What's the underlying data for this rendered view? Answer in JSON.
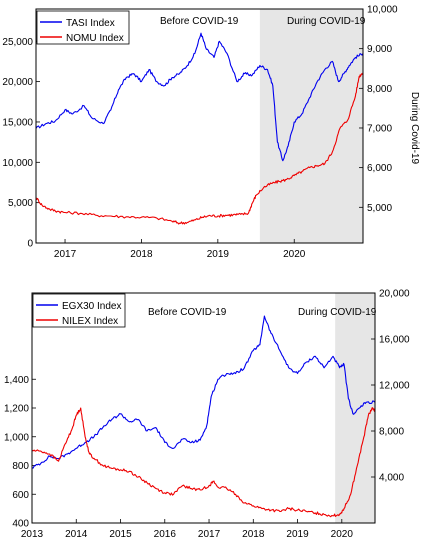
{
  "chart_data": [
    {
      "type": "line",
      "annotations": [
        "Before COVID-19",
        "During COVID-19"
      ],
      "side_label": "During Covid-19",
      "shaded_region": {
        "x_from": 2019.55,
        "x_to": 2020.9,
        "color": "#e6e6e6"
      },
      "x_ticks": [
        "2017",
        "2018",
        "2019",
        "2020"
      ],
      "x_tick_values": [
        2017,
        2018,
        2019,
        2020
      ],
      "xlim": [
        2016.62,
        2020.9
      ],
      "y_left": {
        "ticks": [
          "0",
          "5,000",
          "10,000",
          "15,000",
          "20,000",
          "25,000"
        ],
        "tick_values": [
          0,
          5000,
          10000,
          15000,
          20000,
          25000
        ],
        "ylim": [
          0,
          29000
        ]
      },
      "y_right": {
        "ticks": [
          "5,000",
          "6,000",
          "7,000",
          "8,000",
          "9,000",
          "10,000"
        ],
        "tick_values": [
          5000,
          6000,
          7000,
          8000,
          9000,
          10000
        ],
        "ylim": [
          4100,
          10000
        ]
      },
      "series": [
        {
          "name": "TASI Index",
          "color": "#0000ee",
          "axis": "left",
          "points": [
            [
              2016.62,
              14200
            ],
            [
              2016.75,
              14800
            ],
            [
              2016.87,
              15100
            ],
            [
              2017.0,
              16500
            ],
            [
              2017.1,
              16000
            ],
            [
              2017.25,
              17000
            ],
            [
              2017.35,
              15500
            ],
            [
              2017.5,
              14800
            ],
            [
              2017.6,
              16500
            ],
            [
              2017.7,
              19000
            ],
            [
              2017.8,
              20500
            ],
            [
              2017.9,
              21000
            ],
            [
              2018.0,
              20000
            ],
            [
              2018.1,
              21500
            ],
            [
              2018.2,
              20000
            ],
            [
              2018.3,
              19500
            ],
            [
              2018.4,
              20500
            ],
            [
              2018.5,
              21000
            ],
            [
              2018.6,
              22000
            ],
            [
              2018.7,
              23500
            ],
            [
              2018.78,
              26000
            ],
            [
              2018.85,
              24000
            ],
            [
              2018.95,
              23000
            ],
            [
              2019.02,
              25000
            ],
            [
              2019.12,
              23500
            ],
            [
              2019.25,
              20000
            ],
            [
              2019.35,
              21000
            ],
            [
              2019.45,
              20800
            ],
            [
              2019.55,
              22000
            ],
            [
              2019.65,
              21500
            ],
            [
              2019.72,
              19500
            ],
            [
              2019.78,
              12500
            ],
            [
              2019.85,
              10200
            ],
            [
              2019.92,
              12000
            ],
            [
              2020.0,
              15000
            ],
            [
              2020.1,
              16000
            ],
            [
              2020.2,
              18000
            ],
            [
              2020.3,
              20000
            ],
            [
              2020.4,
              21500
            ],
            [
              2020.5,
              22500
            ],
            [
              2020.58,
              20000
            ],
            [
              2020.65,
              21000
            ],
            [
              2020.72,
              22000
            ],
            [
              2020.8,
              23000
            ],
            [
              2020.9,
              23500
            ]
          ]
        },
        {
          "name": "NOMU Index",
          "color": "#ee0000",
          "axis": "right",
          "points": [
            [
              2016.62,
              5250
            ],
            [
              2016.7,
              5050
            ],
            [
              2016.8,
              4950
            ],
            [
              2016.9,
              4900
            ],
            [
              2017.0,
              4870
            ],
            [
              2017.2,
              4850
            ],
            [
              2017.4,
              4800
            ],
            [
              2017.6,
              4780
            ],
            [
              2017.8,
              4760
            ],
            [
              2018.0,
              4750
            ],
            [
              2018.2,
              4730
            ],
            [
              2018.4,
              4650
            ],
            [
              2018.5,
              4600
            ],
            [
              2018.6,
              4620
            ],
            [
              2018.7,
              4680
            ],
            [
              2018.8,
              4750
            ],
            [
              2018.9,
              4790
            ],
            [
              2019.0,
              4780
            ],
            [
              2019.1,
              4800
            ],
            [
              2019.2,
              4810
            ],
            [
              2019.3,
              4820
            ],
            [
              2019.4,
              4850
            ],
            [
              2019.45,
              5100
            ],
            [
              2019.5,
              5300
            ],
            [
              2019.6,
              5500
            ],
            [
              2019.7,
              5600
            ],
            [
              2019.8,
              5650
            ],
            [
              2019.9,
              5700
            ],
            [
              2020.0,
              5800
            ],
            [
              2020.1,
              5900
            ],
            [
              2020.2,
              6000
            ],
            [
              2020.3,
              6050
            ],
            [
              2020.4,
              6100
            ],
            [
              2020.5,
              6400
            ],
            [
              2020.6,
              7000
            ],
            [
              2020.7,
              7200
            ],
            [
              2020.8,
              7800
            ],
            [
              2020.85,
              8300
            ],
            [
              2020.9,
              8400
            ]
          ]
        }
      ]
    },
    {
      "type": "line",
      "annotations": [
        "Before COVID-19",
        "During COVID-19"
      ],
      "shaded_region": {
        "x_from": 2019.85,
        "x_to": 2020.75,
        "color": "#e6e6e6"
      },
      "x_ticks": [
        "2013",
        "2014",
        "2015",
        "2016",
        "2017",
        "2018",
        "2019",
        "2020"
      ],
      "x_tick_values": [
        2013,
        2014,
        2015,
        2016,
        2017,
        2018,
        2019,
        2020
      ],
      "xlim": [
        2013.0,
        2020.75
      ],
      "y_left": {
        "ticks": [
          "400",
          "600",
          "800",
          "1,000",
          "1,200",
          "1,400"
        ],
        "tick_values": [
          400,
          600,
          800,
          1000,
          1200,
          1400
        ],
        "ylim": [
          400,
          2000
        ]
      },
      "y_right": {
        "ticks": [
          "4,000",
          "8,000",
          "12,000",
          "16,000",
          "20,000"
        ],
        "tick_values": [
          4000,
          8000,
          12000,
          16000,
          20000
        ],
        "ylim": [
          0,
          20000
        ]
      },
      "series": [
        {
          "name": "EGX30 Index",
          "color": "#0000ee",
          "axis": "right",
          "points": [
            [
              2013.0,
              4800
            ],
            [
              2013.2,
              5200
            ],
            [
              2013.4,
              5800
            ],
            [
              2013.6,
              5600
            ],
            [
              2013.8,
              6000
            ],
            [
              2014.0,
              6500
            ],
            [
              2014.2,
              7000
            ],
            [
              2014.4,
              7500
            ],
            [
              2014.6,
              8300
            ],
            [
              2014.8,
              9000
            ],
            [
              2015.0,
              9500
            ],
            [
              2015.2,
              8800
            ],
            [
              2015.4,
              9000
            ],
            [
              2015.6,
              8000
            ],
            [
              2015.8,
              8300
            ],
            [
              2016.0,
              7000
            ],
            [
              2016.2,
              6500
            ],
            [
              2016.4,
              7300
            ],
            [
              2016.6,
              7000
            ],
            [
              2016.8,
              7200
            ],
            [
              2016.95,
              8500
            ],
            [
              2017.05,
              11000
            ],
            [
              2017.2,
              12500
            ],
            [
              2017.4,
              13000
            ],
            [
              2017.6,
              13000
            ],
            [
              2017.8,
              13500
            ],
            [
              2018.0,
              15000
            ],
            [
              2018.15,
              15500
            ],
            [
              2018.25,
              18000
            ],
            [
              2018.4,
              16500
            ],
            [
              2018.6,
              15000
            ],
            [
              2018.8,
              13500
            ],
            [
              2019.0,
              13000
            ],
            [
              2019.2,
              14000
            ],
            [
              2019.4,
              14500
            ],
            [
              2019.6,
              13500
            ],
            [
              2019.8,
              14500
            ],
            [
              2019.95,
              13500
            ],
            [
              2020.05,
              13800
            ],
            [
              2020.15,
              10800
            ],
            [
              2020.25,
              9500
            ],
            [
              2020.4,
              10000
            ],
            [
              2020.55,
              10500
            ],
            [
              2020.75,
              10500
            ]
          ]
        },
        {
          "name": "NILEX Index",
          "color": "#ee0000",
          "axis": "left",
          "points": [
            [
              2013.0,
              905
            ],
            [
              2013.2,
              900
            ],
            [
              2013.4,
              880
            ],
            [
              2013.6,
              830
            ],
            [
              2013.75,
              950
            ],
            [
              2013.9,
              1050
            ],
            [
              2014.0,
              1150
            ],
            [
              2014.1,
              1200
            ],
            [
              2014.2,
              1000
            ],
            [
              2014.3,
              880
            ],
            [
              2014.4,
              850
            ],
            [
              2014.6,
              800
            ],
            [
              2014.8,
              780
            ],
            [
              2015.0,
              770
            ],
            [
              2015.2,
              760
            ],
            [
              2015.4,
              720
            ],
            [
              2015.6,
              680
            ],
            [
              2015.8,
              640
            ],
            [
              2016.0,
              610
            ],
            [
              2016.2,
              600
            ],
            [
              2016.4,
              660
            ],
            [
              2016.6,
              640
            ],
            [
              2016.8,
              630
            ],
            [
              2017.0,
              660
            ],
            [
              2017.1,
              690
            ],
            [
              2017.2,
              650
            ],
            [
              2017.4,
              640
            ],
            [
              2017.6,
              600
            ],
            [
              2017.8,
              540
            ],
            [
              2018.0,
              520
            ],
            [
              2018.2,
              500
            ],
            [
              2018.4,
              490
            ],
            [
              2018.6,
              480
            ],
            [
              2018.8,
              500
            ],
            [
              2019.0,
              490
            ],
            [
              2019.2,
              480
            ],
            [
              2019.4,
              470
            ],
            [
              2019.6,
              460
            ],
            [
              2019.8,
              450
            ],
            [
              2019.95,
              460
            ],
            [
              2020.05,
              500
            ],
            [
              2020.2,
              600
            ],
            [
              2020.35,
              800
            ],
            [
              2020.5,
              1000
            ],
            [
              2020.6,
              1150
            ],
            [
              2020.7,
              1200
            ],
            [
              2020.75,
              1180
            ]
          ]
        }
      ]
    }
  ]
}
